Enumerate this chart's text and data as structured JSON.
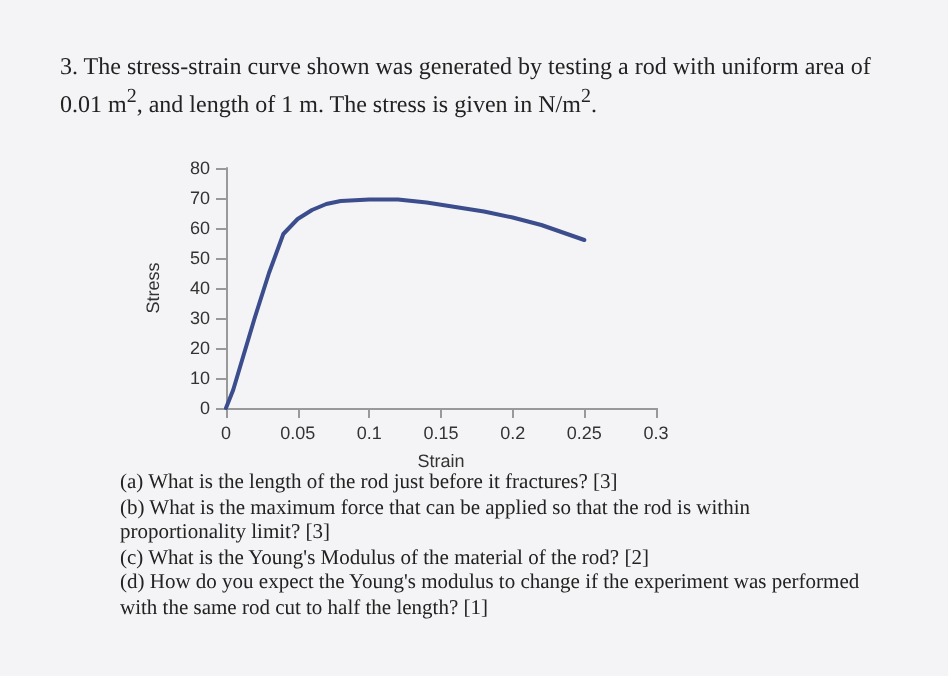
{
  "chart_data": {
    "type": "line",
    "title": "3. The stress-strain curve shown was generated by testing a rod with uniform area of 0.01 m$^{2}$, and length of 1 m. The stress is given in N/m$^{2}$.",
    "xlabel": "Strain",
    "ylabel": "Stress",
    "x": [
      0,
      0.005,
      0.01,
      0.02,
      0.03,
      0.04,
      0.05,
      0.06,
      0.07,
      0.08,
      0.1,
      0.12,
      0.14,
      0.16,
      0.18,
      0.2,
      0.22,
      0.25
    ],
    "series": [
      {
        "color": "#3b4d8c",
        "values": [
          0,
          6,
          14,
          30,
          45,
          58,
          63,
          66,
          68,
          69,
          69.5,
          69.5,
          68.5,
          67,
          65.5,
          63.5,
          61,
          56
        ]
      }
    ],
    "xlim": [
      0,
      0.3
    ],
    "xticks": [
      0,
      0.05,
      0.1,
      0.15,
      0.2,
      0.25,
      0.3
    ],
    "ylim": [
      0,
      80
    ],
    "yticks": [
      0,
      10,
      20,
      30,
      40,
      50,
      60,
      70,
      80
    ],
    "grid": false,
    "marker": "none",
    "line_style": "solid",
    "annotations": [
      "(a) What is the length of the rod just before it fractures? [3]",
      "(b) What is the maximum force that can be applied so that the rod is within proportionality limit? [3]",
      "(c) What is the Young's Modulus of the material of the rod? [2]",
      "(d) How do you expect the Young's modulus to change if the experiment was performed with the same rod cut to half the length? [1]"
    ]
  }
}
